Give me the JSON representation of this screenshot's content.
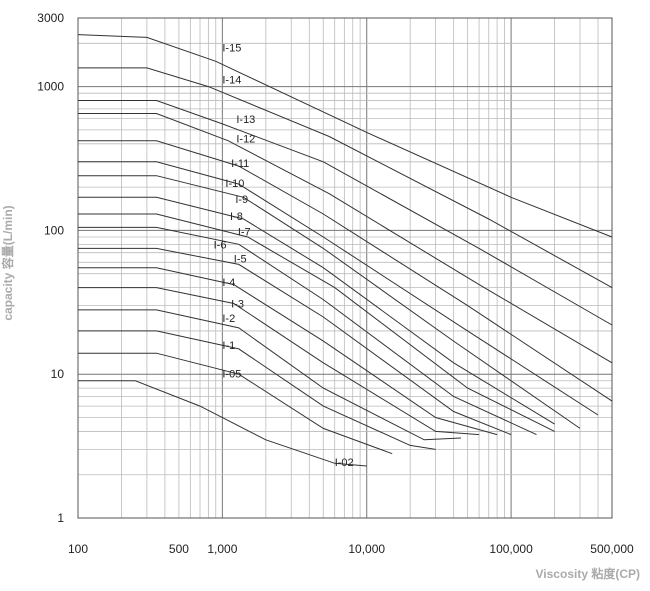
{
  "chart_data": {
    "type": "line",
    "title": "",
    "xlabel": "Viscosity 粘度(CP)",
    "ylabel": "capacity 容量(L/min)",
    "x_scale": "log",
    "y_scale": "log",
    "xlim": [
      100,
      500000
    ],
    "ylim": [
      1,
      3000
    ],
    "grid": true,
    "x_ticks": [
      {
        "value": 100,
        "label": "100"
      },
      {
        "value": 500,
        "label": "500"
      },
      {
        "value": 1000,
        "label": "1,000"
      },
      {
        "value": 10000,
        "label": "10,000"
      },
      {
        "value": 100000,
        "label": "100,000"
      },
      {
        "value": 500000,
        "label": "500,000"
      }
    ],
    "y_ticks": [
      {
        "value": 1,
        "label": "1"
      },
      {
        "value": 10,
        "label": "10"
      },
      {
        "value": 100,
        "label": "100"
      },
      {
        "value": 1000,
        "label": "1000"
      },
      {
        "value": 3000,
        "label": "3000"
      }
    ],
    "series": [
      {
        "name": "I-15",
        "points": [
          [
            100,
            2300
          ],
          [
            300,
            2200
          ],
          [
            900,
            1500
          ],
          [
            10000,
            480
          ],
          [
            100000,
            170
          ],
          [
            500000,
            90
          ]
        ]
      },
      {
        "name": "I-14",
        "points": [
          [
            100,
            1350
          ],
          [
            300,
            1350
          ],
          [
            800,
            1000
          ],
          [
            5500,
            450
          ],
          [
            70000,
            120
          ],
          [
            500000,
            40
          ]
        ]
      },
      {
        "name": "I-13",
        "points": [
          [
            100,
            800
          ],
          [
            350,
            800
          ],
          [
            1000,
            550
          ],
          [
            5000,
            300
          ],
          [
            60000,
            75
          ],
          [
            500000,
            22
          ]
        ]
      },
      {
        "name": "I-12",
        "points": [
          [
            100,
            650
          ],
          [
            350,
            650
          ],
          [
            1100,
            420
          ],
          [
            5500,
            180
          ],
          [
            60000,
            42
          ],
          [
            500000,
            12
          ]
        ]
      },
      {
        "name": "I-11",
        "points": [
          [
            100,
            420
          ],
          [
            350,
            420
          ],
          [
            1300,
            280
          ],
          [
            5000,
            130
          ],
          [
            50000,
            30
          ],
          [
            500000,
            6.5
          ]
        ]
      },
      {
        "name": "I-10",
        "points": [
          [
            100,
            300
          ],
          [
            350,
            300
          ],
          [
            1300,
            210
          ],
          [
            5000,
            90
          ],
          [
            50000,
            20
          ],
          [
            400000,
            5.2
          ]
        ]
      },
      {
        "name": "I-9",
        "points": [
          [
            100,
            240
          ],
          [
            350,
            240
          ],
          [
            1400,
            170
          ],
          [
            5000,
            75
          ],
          [
            40000,
            17
          ],
          [
            300000,
            4.2
          ]
        ]
      },
      {
        "name": "I-8",
        "points": [
          [
            100,
            170
          ],
          [
            350,
            170
          ],
          [
            1400,
            120
          ],
          [
            5000,
            55
          ],
          [
            40000,
            12
          ],
          [
            200000,
            4.5
          ]
        ]
      },
      {
        "name": "I-7",
        "points": [
          [
            100,
            130
          ],
          [
            350,
            130
          ],
          [
            1500,
            90
          ],
          [
            6000,
            40
          ],
          [
            50000,
            8
          ],
          [
            200000,
            4
          ]
        ]
      },
      {
        "name": "I-6",
        "points": [
          [
            100,
            105
          ],
          [
            350,
            105
          ],
          [
            1300,
            80
          ],
          [
            5000,
            33
          ],
          [
            40000,
            7
          ],
          [
            150000,
            3.8
          ]
        ]
      },
      {
        "name": "I-5",
        "points": [
          [
            100,
            75
          ],
          [
            350,
            75
          ],
          [
            1300,
            58
          ],
          [
            5000,
            25
          ],
          [
            40000,
            5.5
          ],
          [
            100000,
            3.8
          ]
        ]
      },
      {
        "name": "I-4",
        "points": [
          [
            100,
            55
          ],
          [
            350,
            55
          ],
          [
            1200,
            42
          ],
          [
            5000,
            17
          ],
          [
            30000,
            5
          ],
          [
            80000,
            3.8
          ]
        ]
      },
      {
        "name": "I-3",
        "points": [
          [
            100,
            40
          ],
          [
            350,
            40
          ],
          [
            1200,
            31
          ],
          [
            5000,
            12
          ],
          [
            30000,
            4
          ],
          [
            60000,
            3.8
          ]
        ]
      },
      {
        "name": "I-2",
        "points": [
          [
            100,
            28
          ],
          [
            350,
            28
          ],
          [
            1300,
            21
          ],
          [
            5000,
            8
          ],
          [
            25000,
            3.5
          ],
          [
            45000,
            3.6
          ]
        ]
      },
      {
        "name": "I-1",
        "points": [
          [
            100,
            20
          ],
          [
            350,
            20
          ],
          [
            1300,
            15
          ],
          [
            5000,
            6
          ],
          [
            20000,
            3.2
          ],
          [
            30000,
            3
          ]
        ]
      },
      {
        "name": "I-05",
        "points": [
          [
            100,
            14
          ],
          [
            350,
            14
          ],
          [
            1300,
            10
          ],
          [
            5000,
            4.2
          ],
          [
            15000,
            2.8
          ]
        ]
      },
      {
        "name": "I-02",
        "points": [
          [
            100,
            9
          ],
          [
            250,
            9
          ],
          [
            700,
            6
          ],
          [
            2000,
            3.5
          ],
          [
            6000,
            2.4
          ],
          [
            10000,
            2.3
          ]
        ]
      }
    ],
    "labels": [
      {
        "text": "I-15",
        "x": 1000,
        "y": 1750
      },
      {
        "text": "I-14",
        "x": 1000,
        "y": 1050
      },
      {
        "text": "I-13",
        "x": 1250,
        "y": 560
      },
      {
        "text": "I-12",
        "x": 1250,
        "y": 410
      },
      {
        "text": "I-11",
        "x": 1150,
        "y": 275
      },
      {
        "text": "I-10",
        "x": 1050,
        "y": 200
      },
      {
        "text": "I-9",
        "x": 1230,
        "y": 155
      },
      {
        "text": "I-8",
        "x": 1130,
        "y": 118
      },
      {
        "text": "I-7",
        "x": 1280,
        "y": 92
      },
      {
        "text": "I-6",
        "x": 870,
        "y": 75
      },
      {
        "text": "I-5",
        "x": 1200,
        "y": 60
      },
      {
        "text": "I-4",
        "x": 1000,
        "y": 41
      },
      {
        "text": "I-3",
        "x": 1150,
        "y": 29
      },
      {
        "text": "I-2",
        "x": 1000,
        "y": 23
      },
      {
        "text": "I-1",
        "x": 1000,
        "y": 15
      },
      {
        "text": "I-05",
        "x": 1000,
        "y": 9.5
      },
      {
        "text": "I-02",
        "x": 6000,
        "y": 2.3
      }
    ]
  }
}
